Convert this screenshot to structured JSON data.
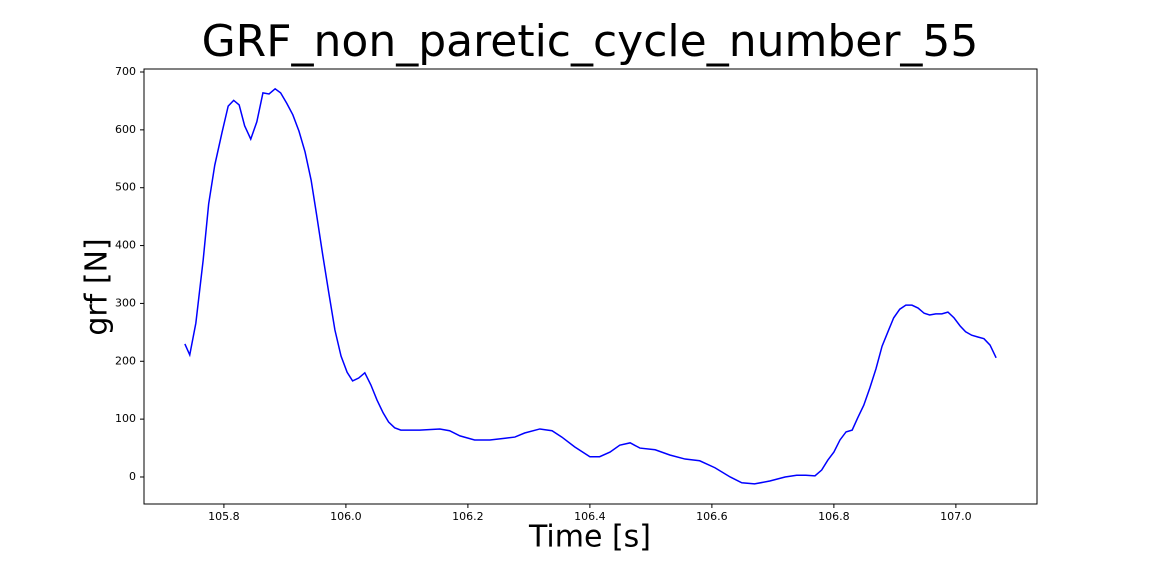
{
  "chart_data": {
    "type": "line",
    "title": "GRF_non_paretic_cycle_number_55",
    "x_label": "Time [s]",
    "y_label": "grf [N]",
    "x": [
      105.736,
      105.744,
      105.754,
      105.766,
      105.775,
      105.785,
      105.797,
      105.807,
      105.816,
      105.825,
      105.834,
      105.844,
      105.854,
      105.864,
      105.874,
      105.884,
      105.893,
      105.903,
      105.913,
      105.923,
      105.933,
      105.943,
      105.952,
      105.962,
      105.972,
      105.982,
      105.992,
      106.002,
      106.011,
      106.021,
      106.031,
      106.041,
      106.051,
      106.061,
      106.07,
      106.08,
      106.09,
      106.1,
      106.121,
      106.154,
      106.17,
      106.187,
      106.211,
      106.236,
      106.261,
      106.277,
      106.293,
      106.318,
      106.338,
      106.354,
      106.375,
      106.4,
      106.416,
      106.433,
      106.449,
      106.466,
      106.482,
      106.507,
      106.531,
      106.556,
      106.58,
      106.605,
      106.63,
      106.649,
      106.67,
      106.695,
      106.72,
      106.739,
      106.754,
      106.769,
      106.78,
      106.79,
      106.8,
      106.81,
      106.82,
      106.83,
      106.839,
      106.849,
      106.859,
      106.869,
      106.879,
      106.889,
      106.898,
      106.908,
      106.918,
      106.928,
      106.938,
      106.948,
      106.957,
      106.967,
      106.977,
      106.987,
      106.997,
      107.007,
      107.016,
      107.026,
      107.036,
      107.046,
      107.056,
      107.066
    ],
    "series": [
      {
        "color": "#0000ff",
        "values": [
          230,
          211,
          266,
          375,
          472,
          539,
          596,
          641,
          651,
          643,
          607,
          584,
          614,
          664,
          662,
          671,
          664,
          646,
          626,
          598,
          562,
          513,
          453,
          384,
          318,
          254,
          209,
          181,
          166,
          171,
          180,
          159,
          133,
          111,
          95,
          85,
          81,
          81,
          81,
          83,
          80,
          71,
          64,
          64,
          67,
          69,
          76,
          83,
          80,
          69,
          52,
          35,
          35,
          43,
          55,
          59,
          50,
          47,
          38,
          31,
          28,
          16,
          0,
          -10,
          -12,
          -7,
          0,
          3,
          3,
          2,
          12,
          29,
          43,
          64,
          78,
          81,
          102,
          124,
          154,
          187,
          226,
          252,
          275,
          290,
          297,
          297,
          292,
          283,
          280,
          282,
          282,
          285,
          275,
          261,
          251,
          245,
          242,
          239,
          228,
          206
        ]
      }
    ],
    "xlim": [
      105.669,
      107.133
    ],
    "ylim": [
      -46.7,
      705.2
    ],
    "xticks": [
      105.8,
      {
        "value": 106,
        "label": "106.0"
      },
      106.2,
      106.4,
      106.6,
      106.8,
      {
        "value": 107,
        "label": "107.0"
      }
    ],
    "yticks": [
      0,
      100,
      200,
      300,
      400,
      500,
      600,
      700
    ],
    "grid": false
  }
}
